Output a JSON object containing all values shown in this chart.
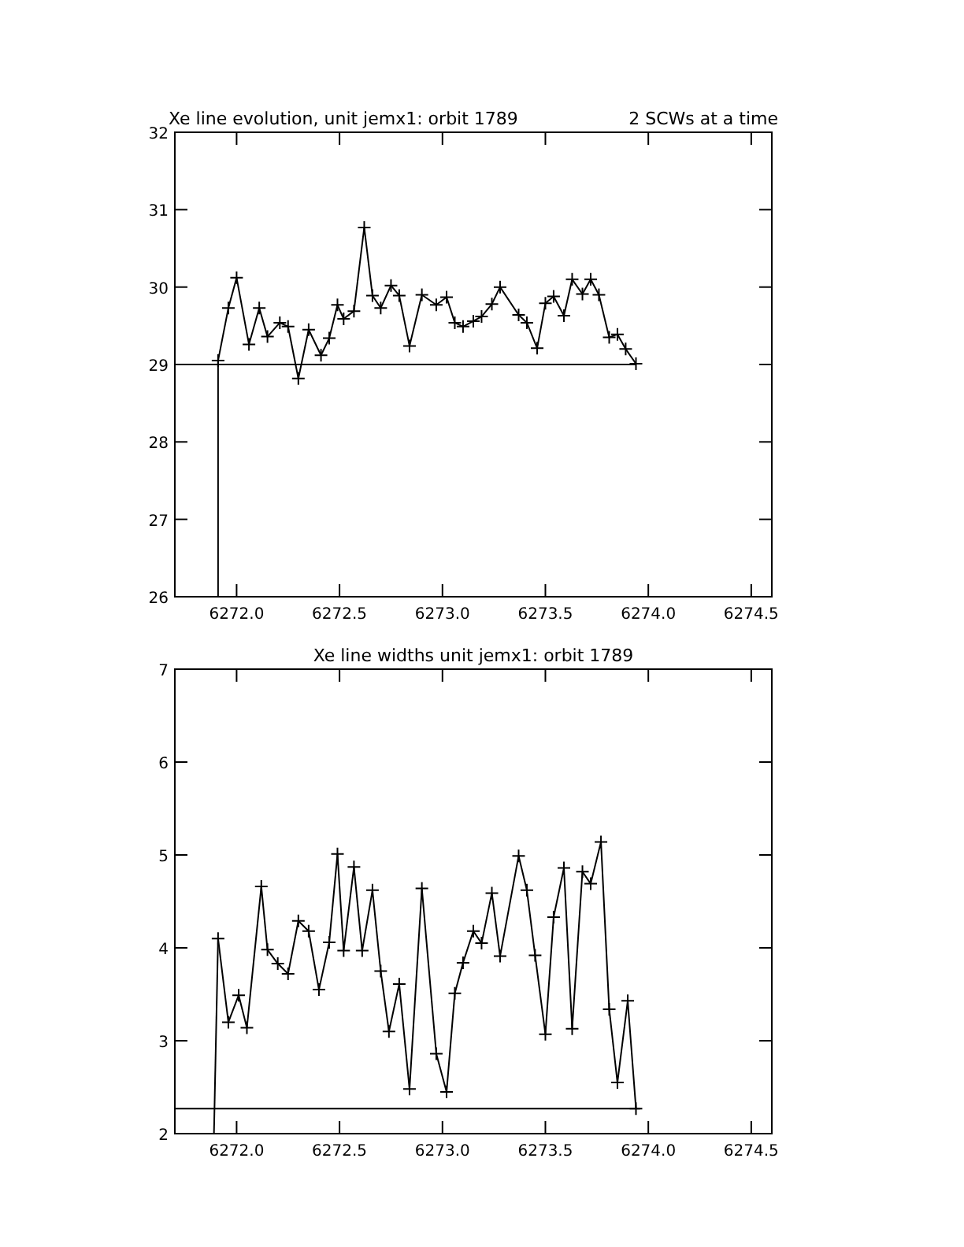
{
  "chart_data": [
    {
      "type": "line",
      "title": "Xe line evolution, unit jemx1: orbit 1789",
      "subtitle": "2 SCWs at a time",
      "marker": "cross",
      "line_style": "solid",
      "xlim": [
        6271.7,
        6274.6
      ],
      "xticks": [
        {
          "value": 6272,
          "label": "6272.0"
        },
        {
          "value": 6272.5,
          "label": "6272.5"
        },
        {
          "value": 6273,
          "label": "6273.0"
        },
        {
          "value": 6273.5,
          "label": "6273.5"
        },
        {
          "value": 6274,
          "label": "6274.0"
        },
        {
          "value": 6274.5,
          "label": "6274.5"
        }
      ],
      "ylim": [
        26,
        32
      ],
      "yticks": [
        26,
        27,
        28,
        29,
        30,
        31,
        32
      ],
      "series": [
        {
          "color": "#000000",
          "x": [
            6271.91,
            6271.96,
            6272.0,
            6272.06,
            6272.11,
            6272.15,
            6272.21,
            6272.25,
            6272.3,
            6272.35,
            6272.41,
            6272.45,
            6272.49,
            6272.52,
            6272.57,
            6272.62,
            6272.66,
            6272.7,
            6272.75,
            6272.79,
            6272.84,
            6272.9,
            6272.97,
            6273.02,
            6273.06,
            6273.1,
            6273.15,
            6273.19,
            6273.24,
            6273.28,
            6273.37,
            6273.41,
            6273.46,
            6273.5,
            6273.54,
            6273.59,
            6273.63,
            6273.68,
            6273.72,
            6273.76,
            6273.81,
            6273.85,
            6273.89,
            6273.94
          ],
          "values": [
            29.05,
            29.73,
            30.12,
            29.26,
            29.73,
            29.36,
            29.54,
            29.49,
            28.82,
            29.45,
            29.12,
            29.34,
            29.77,
            29.59,
            29.69,
            30.77,
            29.89,
            29.73,
            30.02,
            29.89,
            29.24,
            29.9,
            29.77,
            29.87,
            29.54,
            29.49,
            29.56,
            29.62,
            29.78,
            30.0,
            29.64,
            29.54,
            29.21,
            29.79,
            29.88,
            29.63,
            30.1,
            29.91,
            30.1,
            29.9,
            29.35,
            29.39,
            29.2,
            29.01
          ]
        },
        {
          "color": "#000000",
          "marker": "none",
          "x": [
            6271.91,
            6271.91
          ],
          "values": [
            26,
            29.05
          ]
        },
        {
          "color": "#000000",
          "marker": "none",
          "x": [
            6271.7,
            6273.94
          ],
          "values": [
            29,
            29
          ]
        }
      ]
    },
    {
      "type": "line",
      "title": "Xe line widths unit jemx1: orbit 1789",
      "marker": "cross",
      "line_style": "solid",
      "xlim": [
        6271.7,
        6274.6
      ],
      "xticks": [
        {
          "value": 6272,
          "label": "6272.0"
        },
        {
          "value": 6272.5,
          "label": "6272.5"
        },
        {
          "value": 6273,
          "label": "6273.0"
        },
        {
          "value": 6273.5,
          "label": "6273.5"
        },
        {
          "value": 6274,
          "label": "6274.0"
        },
        {
          "value": 6274.5,
          "label": "6274.5"
        }
      ],
      "ylim": [
        2,
        7
      ],
      "yticks": [
        2,
        3,
        4,
        5,
        6,
        7
      ],
      "series": [
        {
          "color": "#000000",
          "x": [
            6271.91,
            6271.96,
            6272.01,
            6272.05,
            6272.12,
            6272.15,
            6272.2,
            6272.25,
            6272.3,
            6272.35,
            6272.4,
            6272.45,
            6272.49,
            6272.52,
            6272.57,
            6272.61,
            6272.66,
            6272.7,
            6272.74,
            6272.79,
            6272.84,
            6272.9,
            6272.97,
            6273.02,
            6273.06,
            6273.1,
            6273.15,
            6273.19,
            6273.24,
            6273.28,
            6273.37,
            6273.41,
            6273.45,
            6273.5,
            6273.54,
            6273.59,
            6273.63,
            6273.68,
            6273.72,
            6273.77,
            6273.81,
            6273.85,
            6273.9,
            6273.94
          ],
          "values": [
            4.1,
            3.2,
            3.49,
            3.14,
            4.66,
            3.98,
            3.83,
            3.72,
            4.29,
            4.18,
            3.55,
            4.06,
            5.01,
            3.97,
            4.87,
            3.97,
            4.62,
            3.75,
            3.1,
            3.61,
            2.48,
            4.64,
            2.86,
            2.45,
            3.51,
            3.84,
            4.18,
            4.05,
            4.59,
            3.91,
            4.99,
            4.62,
            3.92,
            3.07,
            4.33,
            4.86,
            3.13,
            4.82,
            4.69,
            5.14,
            3.34,
            2.55,
            3.43,
            2.27
          ]
        },
        {
          "color": "#000000",
          "marker": "none",
          "x": [
            6271.89,
            6271.91
          ],
          "values": [
            2,
            4.1
          ]
        },
        {
          "color": "#000000",
          "marker": "none",
          "x": [
            6271.7,
            6273.96
          ],
          "values": [
            2.27,
            2.27
          ]
        }
      ]
    }
  ]
}
